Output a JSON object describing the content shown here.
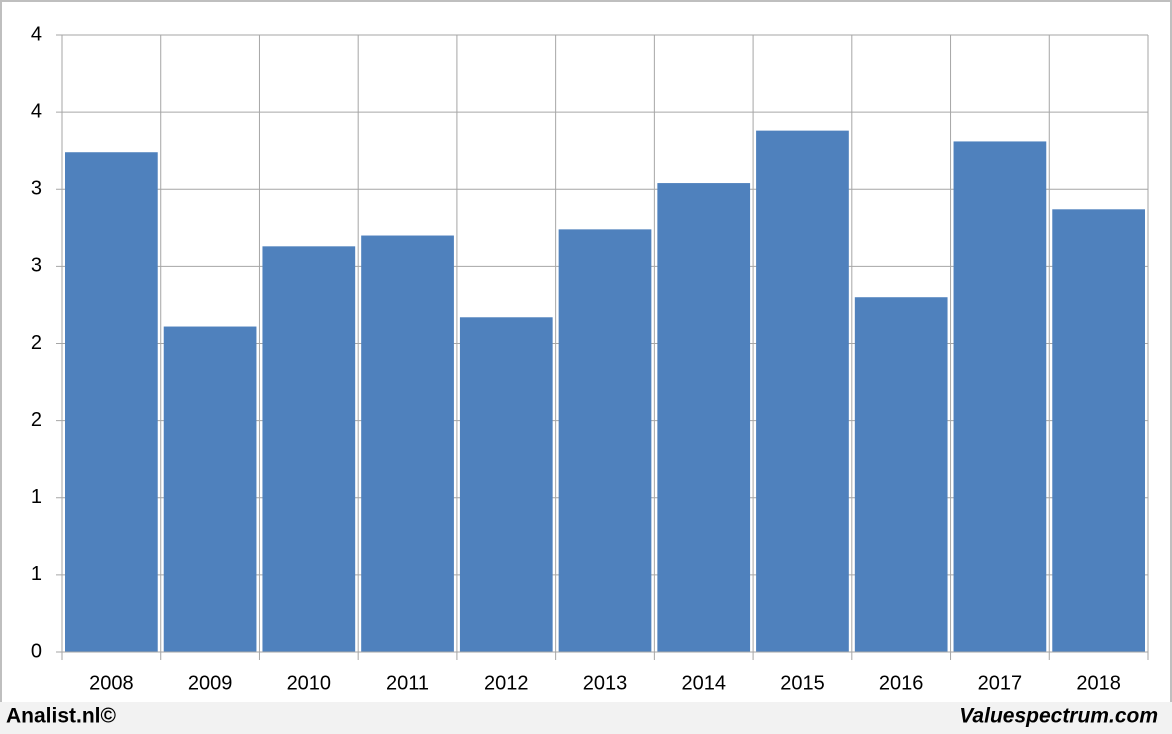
{
  "chart_data": {
    "type": "bar",
    "categories": [
      "2008",
      "2009",
      "2010",
      "2011",
      "2012",
      "2013",
      "2014",
      "2015",
      "2016",
      "2017",
      "2018"
    ],
    "values": [
      3.24,
      2.11,
      2.63,
      2.7,
      2.17,
      2.74,
      3.04,
      3.38,
      2.3,
      3.31,
      2.87
    ],
    "color": "#4f81bd",
    "ylim": [
      0,
      4
    ],
    "yticks": [
      0,
      {
        "value": 0.5,
        "label": "1"
      },
      1,
      {
        "value": 1.5,
        "label": "2"
      },
      2,
      {
        "value": 2.5,
        "label": "3"
      },
      3,
      {
        "value": 3.5,
        "label": "4"
      },
      4
    ],
    "grid": true
  },
  "footer": {
    "left": "Analist.nl©",
    "right": "Valuespectrum.com"
  }
}
